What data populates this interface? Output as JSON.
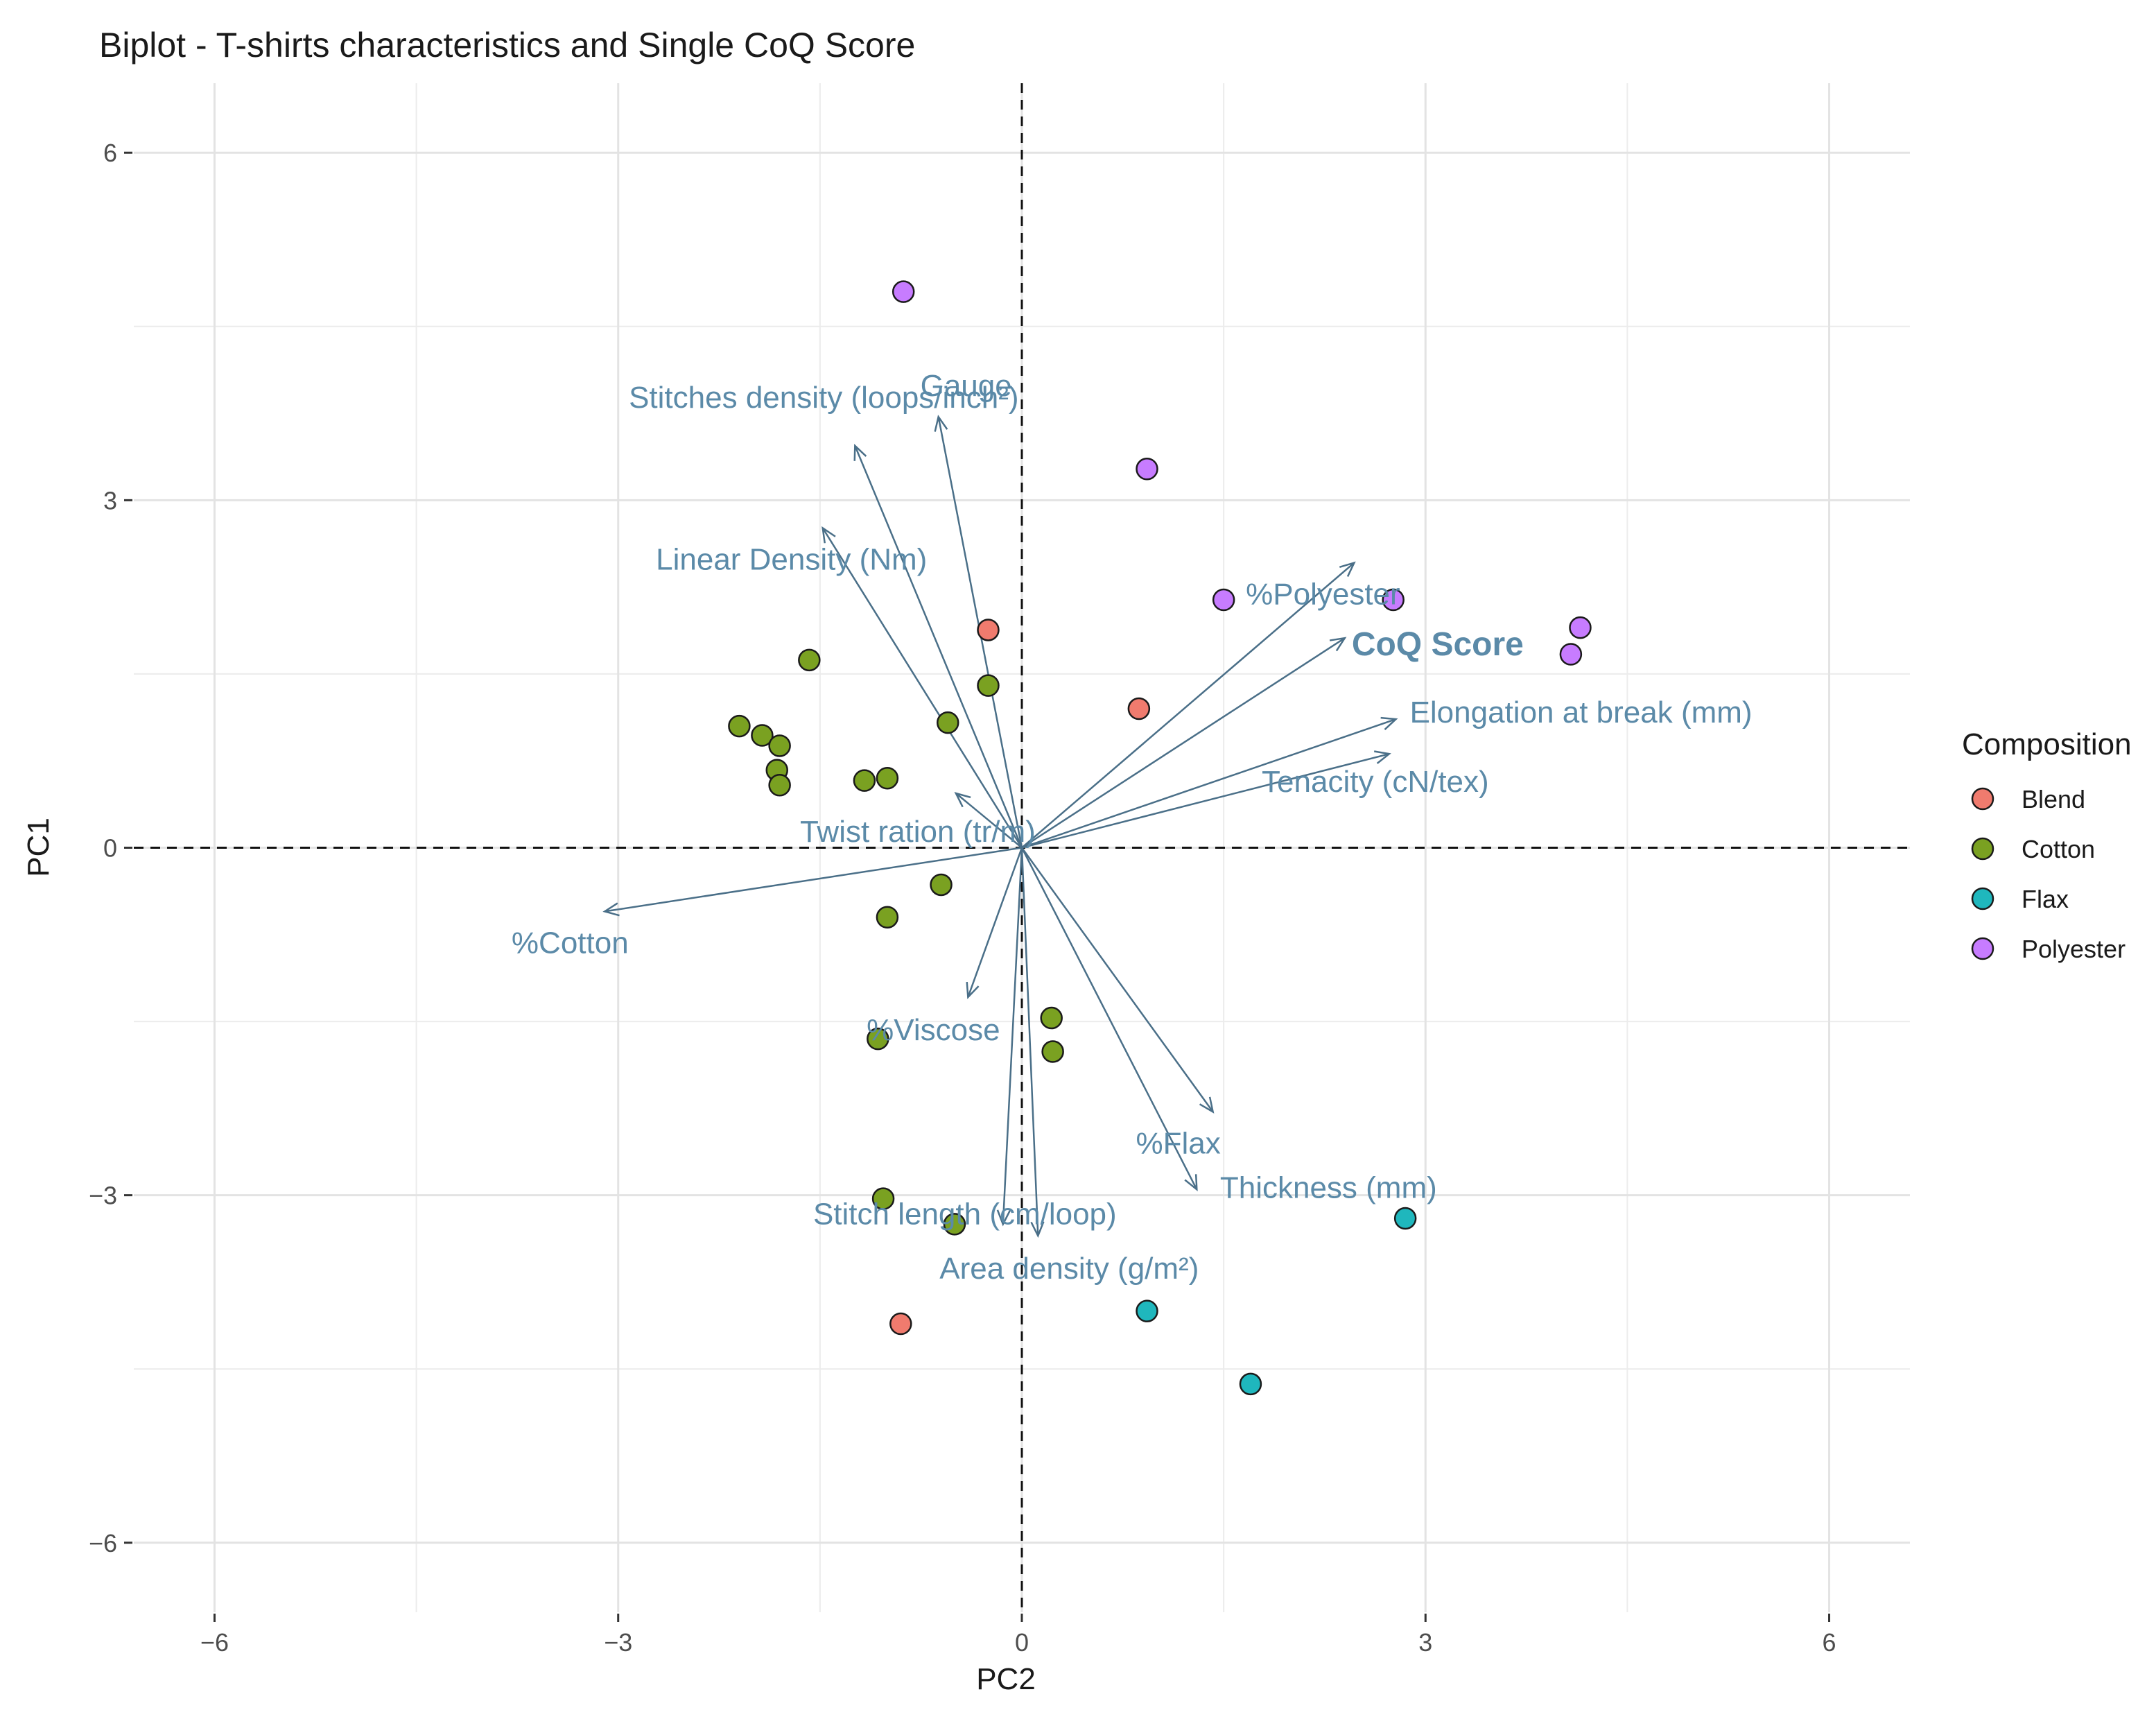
{
  "chart_data": {
    "type": "scatter",
    "title": "Biplot - T-shirts characteristics and Single CoQ Score",
    "xlabel": "PC2",
    "ylabel": "PC1",
    "xlim": [
      -6.6,
      6.6
    ],
    "ylim": [
      -6.6,
      6.6
    ],
    "xticks": [
      -6,
      -3,
      0,
      3,
      6
    ],
    "yticks": [
      -6,
      -3,
      0,
      3,
      6
    ],
    "grid": true,
    "reference_lines": [
      "x=0 dashed",
      "y=0 dashed"
    ],
    "legend": {
      "title": "Composition",
      "position": "right",
      "entries": [
        {
          "name": "Blend",
          "color": "#f07b6e"
        },
        {
          "name": "Cotton",
          "color": "#7aa121"
        },
        {
          "name": "Flax",
          "color": "#1fb7bd"
        },
        {
          "name": "Polyester",
          "color": "#c77cff"
        }
      ]
    },
    "series": [
      {
        "name": "Blend",
        "color": "#f07b6e",
        "points": [
          [
            -0.25,
            1.88
          ],
          [
            0.87,
            1.2
          ],
          [
            -0.9,
            -4.11
          ]
        ]
      },
      {
        "name": "Cotton",
        "color": "#7aa121",
        "points": [
          [
            -1.58,
            1.62
          ],
          [
            -0.25,
            1.4
          ],
          [
            -0.55,
            1.08
          ],
          [
            -2.1,
            1.05
          ],
          [
            -1.93,
            0.97
          ],
          [
            -1.8,
            0.88
          ],
          [
            -1.82,
            0.67
          ],
          [
            -1.8,
            0.54
          ],
          [
            -1.17,
            0.58
          ],
          [
            -1.0,
            0.6
          ],
          [
            -0.6,
            -0.32
          ],
          [
            -1.0,
            -0.6
          ],
          [
            -1.07,
            -1.65
          ],
          [
            0.22,
            -1.47
          ],
          [
            0.23,
            -1.76
          ],
          [
            -1.03,
            -3.03
          ],
          [
            -0.5,
            -3.25
          ]
        ]
      },
      {
        "name": "Flax",
        "color": "#1fb7bd",
        "points": [
          [
            2.85,
            -3.2
          ],
          [
            0.93,
            -4.0
          ],
          [
            1.7,
            -4.63
          ]
        ]
      },
      {
        "name": "Polyester",
        "color": "#c77cff",
        "points": [
          [
            -0.88,
            4.8
          ],
          [
            0.93,
            3.27
          ],
          [
            1.5,
            2.14
          ],
          [
            2.76,
            2.14
          ],
          [
            4.15,
            1.9
          ],
          [
            4.08,
            1.67
          ]
        ]
      }
    ],
    "loadings": [
      {
        "name": "Gauge",
        "x": -0.62,
        "y": 3.72
      },
      {
        "name": "Stitches density (loops/inch²)",
        "x": -1.24,
        "y": 3.47
      },
      {
        "name": "Linear Density (Nm)",
        "x": -1.48,
        "y": 2.76
      },
      {
        "name": "%Polyester",
        "x": 2.47,
        "y": 2.46
      },
      {
        "name": "CoQ Score",
        "x": 2.4,
        "y": 1.81,
        "bold": true
      },
      {
        "name": "Elongation at break (mm)",
        "x": 2.78,
        "y": 1.11
      },
      {
        "name": "Tenacity (cN/tex)",
        "x": 2.73,
        "y": 0.81
      },
      {
        "name": "Twist ration (tr/m)",
        "x": -0.49,
        "y": 0.47
      },
      {
        "name": "%Cotton",
        "x": -3.1,
        "y": -0.55
      },
      {
        "name": "%Viscose",
        "x": -0.4,
        "y": -1.29
      },
      {
        "name": "%Flax",
        "x": 1.42,
        "y": -2.28
      },
      {
        "name": "Thickness (mm)",
        "x": 1.3,
        "y": -2.95
      },
      {
        "name": "Stitch length (cm/loop)",
        "x": -0.14,
        "y": -3.25
      },
      {
        "name": "Area density (g/m²)",
        "x": 0.12,
        "y": -3.35
      }
    ]
  }
}
